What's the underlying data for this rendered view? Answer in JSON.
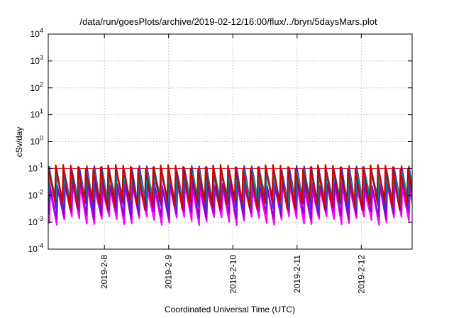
{
  "chart_data": {
    "type": "line",
    "title": "/data/run/goesPlots/archive/2019-02-12/16:00/flux/../bryn/5daysMars.plot",
    "xlabel": "Coordinated Universal Time (UTC)",
    "ylabel": "cSv/day",
    "yscale": "log",
    "ylim": [
      0.0001,
      10000
    ],
    "xlim": [
      "2019-02-07 03:00",
      "2019-02-12 19:00"
    ],
    "y_ticks": [
      {
        "base": "10",
        "exp": "-4",
        "value": 0.0001
      },
      {
        "base": "10",
        "exp": "-3",
        "value": 0.001
      },
      {
        "base": "10",
        "exp": "-2",
        "value": 0.01
      },
      {
        "base": "10",
        "exp": "-1",
        "value": 0.1
      },
      {
        "base": "10",
        "exp": "0",
        "value": 1
      },
      {
        "base": "10",
        "exp": "1",
        "value": 10
      },
      {
        "base": "10",
        "exp": "2",
        "value": 100
      },
      {
        "base": "10",
        "exp": "3",
        "value": 1000
      },
      {
        "base": "10",
        "exp": "4",
        "value": 10000
      }
    ],
    "x_ticks": [
      {
        "label": "2019-2-8",
        "date": "2019-02-08"
      },
      {
        "label": "2019-2-9",
        "date": "2019-02-09"
      },
      {
        "label": "2019-2-10",
        "date": "2019-02-10"
      },
      {
        "label": "2019-2-11",
        "date": "2019-02-11"
      },
      {
        "label": "2019-2-12",
        "date": "2019-02-12"
      }
    ],
    "grid": true,
    "reference_line": {
      "value": 0.1,
      "color": "#cc0000"
    },
    "sawtooth_period_hours": 2.8,
    "series": [
      {
        "color": "#cc0000",
        "peak": 0.11,
        "trough": 0.0045
      },
      {
        "color": "#008080",
        "peak": 0.09,
        "trough": 0.0055
      },
      {
        "color": "#00aaaa",
        "peak": 0.07,
        "trough": 0.007
      },
      {
        "color": "#3333cc",
        "peak": 0.1,
        "trough": 0.004
      },
      {
        "color": "#9400d3",
        "peak": 0.03,
        "trough": 0.002
      },
      {
        "color": "#ff00ff",
        "peak": 0.02,
        "trough": 0.0012
      }
    ]
  }
}
